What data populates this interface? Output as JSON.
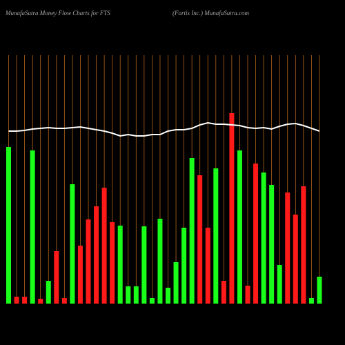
{
  "chart_data": {
    "type": "bar",
    "title": "MunafaSutra  Money Flow  Charts for FTS",
    "subtitle": "(Fortis Inc.) MunafaSutra.com",
    "categories": [
      null,
      null,
      null,
      null,
      null,
      null,
      null,
      null,
      null,
      null,
      null,
      null,
      null,
      null,
      null,
      null,
      null,
      null,
      null,
      null,
      null,
      null,
      null,
      null,
      null,
      null,
      null,
      null,
      null,
      null,
      null,
      null,
      null,
      null,
      null,
      null,
      null,
      null,
      null,
      null
    ],
    "values": [
      227,
      10,
      10,
      222,
      7,
      33,
      76,
      8,
      173,
      84,
      122,
      141,
      168,
      118,
      113,
      25,
      25,
      112,
      8,
      123,
      23,
      60,
      110,
      211,
      186,
      110,
      196,
      33,
      276,
      222,
      26,
      203,
      190,
      172,
      56,
      161,
      129,
      170,
      8,
      39
    ],
    "colors": [
      "#1aff1a",
      "#ff1a1a",
      "#ff1a1a",
      "#1aff1a",
      "#ff1a1a",
      "#1aff1a",
      "#ff1a1a",
      "#ff1a1a",
      "#1aff1a",
      "#ff1a1a",
      "#ff1a1a",
      "#ff1a1a",
      "#ff1a1a",
      "#ff1a1a",
      "#1aff1a",
      "#1aff1a",
      "#1aff1a",
      "#1aff1a",
      "#1aff1a",
      "#1aff1a",
      "#1aff1a",
      "#1aff1a",
      "#1aff1a",
      "#1aff1a",
      "#ff1a1a",
      "#ff1a1a",
      "#1aff1a",
      "#ff1a1a",
      "#ff1a1a",
      "#1aff1a",
      "#ff1a1a",
      "#ff1a1a",
      "#1aff1a",
      "#1aff1a",
      "#1aff1a",
      "#ff1a1a",
      "#ff1a1a",
      "#ff1a1a",
      "#1aff1a",
      "#1aff1a"
    ],
    "line_values": [
      250,
      250,
      251,
      253,
      254,
      255,
      254,
      254,
      255,
      256,
      254,
      252,
      250,
      247,
      243,
      245,
      243,
      243,
      245,
      245,
      250,
      252,
      252,
      254,
      259,
      262,
      260,
      260,
      259,
      258,
      255,
      254,
      255,
      253,
      257,
      260,
      261,
      258,
      254,
      250
    ],
    "line_color": "#ffffff",
    "grid_color": "#b5651d",
    "ylim": [
      0,
      360
    ]
  }
}
